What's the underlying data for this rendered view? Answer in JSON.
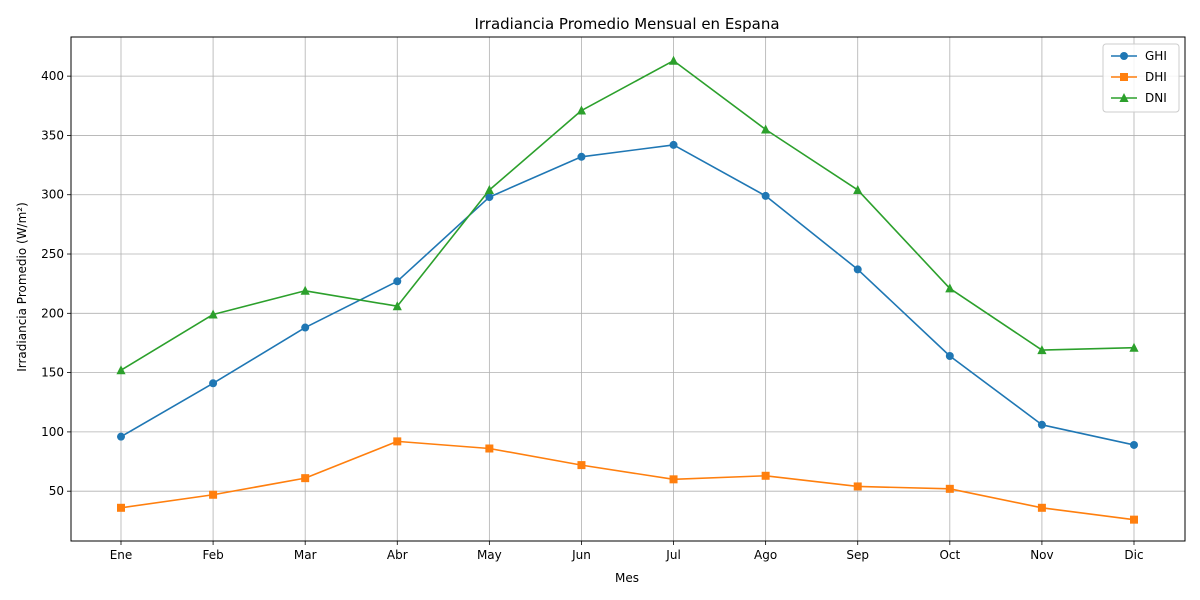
{
  "chart_data": {
    "type": "line",
    "title": "Irradiancia Promedio Mensual en Espana",
    "xlabel": "Mes",
    "ylabel": "Irradiancia Promedio (W/m²)",
    "categories": [
      "Ene",
      "Feb",
      "Mar",
      "Abr",
      "May",
      "Jun",
      "Jul",
      "Ago",
      "Sep",
      "Oct",
      "Nov",
      "Dic"
    ],
    "ylim": [
      8,
      433
    ],
    "yticks": [
      50,
      100,
      150,
      200,
      250,
      300,
      350,
      400
    ],
    "grid": true,
    "legend_position": "top-right",
    "series": [
      {
        "name": "GHI",
        "color": "#1f77b4",
        "marker": "circle",
        "values": [
          96,
          141,
          188,
          227,
          298,
          332,
          342,
          299,
          237,
          164,
          106,
          89
        ]
      },
      {
        "name": "DHI",
        "color": "#ff7f0e",
        "marker": "square",
        "values": [
          36,
          47,
          61,
          92,
          86,
          72,
          60,
          63,
          54,
          52,
          36,
          26
        ]
      },
      {
        "name": "DNI",
        "color": "#2ca02c",
        "marker": "triangle",
        "values": [
          152,
          199,
          219,
          206,
          304,
          371,
          413,
          355,
          304,
          221,
          169,
          171
        ]
      }
    ]
  }
}
